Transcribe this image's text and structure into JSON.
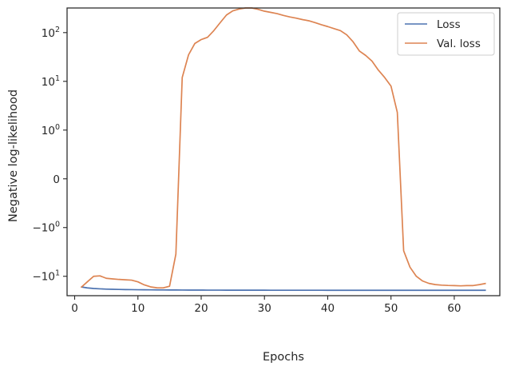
{
  "chart_data": {
    "type": "line",
    "xlabel": "Epochs",
    "ylabel": "Negative log-likelihood",
    "xlim": [
      -1.2,
      67.2
    ],
    "ylim": [
      -25,
      320
    ],
    "yscale": "symlog",
    "linthresh": 1,
    "xticks": [
      0,
      10,
      20,
      30,
      40,
      50,
      60
    ],
    "yticks": [
      {
        "value": 100,
        "label": "10",
        "exp": "2"
      },
      {
        "value": 10,
        "label": "10",
        "exp": "1"
      },
      {
        "value": 1,
        "label": "10",
        "exp": "0"
      },
      {
        "value": 0,
        "label": "0",
        "exp": ""
      },
      {
        "value": -1,
        "label": "−10",
        "exp": "0"
      },
      {
        "value": -10,
        "label": "−10",
        "exp": "1"
      }
    ],
    "grid": false,
    "legend_position": "top-right",
    "series": [
      {
        "name": "Loss",
        "color": "#4c72b0",
        "x": [
          1,
          2,
          3,
          4,
          5,
          6,
          7,
          8,
          9,
          10,
          11,
          12,
          13,
          14,
          15,
          16,
          17,
          18,
          19,
          20,
          21,
          22,
          23,
          24,
          25,
          26,
          27,
          28,
          29,
          30,
          31,
          32,
          33,
          34,
          35,
          36,
          37,
          38,
          39,
          40,
          41,
          42,
          43,
          44,
          45,
          46,
          47,
          48,
          49,
          50,
          51,
          52,
          53,
          54,
          55,
          56,
          57,
          58,
          59,
          60,
          61,
          62,
          63,
          64,
          65
        ],
        "y": [
          -16.5,
          -17.3,
          -17.8,
          -18.1,
          -18.35,
          -18.5,
          -18.62,
          -18.72,
          -18.8,
          -18.87,
          -18.93,
          -18.98,
          -19.02,
          -19.06,
          -19.09,
          -19.12,
          -19.15,
          -19.17,
          -19.19,
          -19.21,
          -19.22,
          -19.24,
          -19.25,
          -19.26,
          -19.27,
          -19.28,
          -19.29,
          -19.3,
          -19.31,
          -19.31,
          -19.32,
          -19.32,
          -19.33,
          -19.33,
          -19.34,
          -19.34,
          -19.35,
          -19.35,
          -19.35,
          -19.36,
          -19.36,
          -19.36,
          -19.36,
          -19.37,
          -19.37,
          -19.37,
          -19.37,
          -19.37,
          -19.38,
          -19.38,
          -19.38,
          -19.38,
          -19.38,
          -19.38,
          -19.38,
          -19.38,
          -19.39,
          -19.39,
          -19.39,
          -19.39,
          -19.39,
          -19.39,
          -19.39,
          -19.39,
          -19.4
        ]
      },
      {
        "name": "Val. loss",
        "color": "#dd8452",
        "x": [
          1,
          2,
          3,
          4,
          5,
          6,
          7,
          8,
          9,
          10,
          11,
          12,
          13,
          14,
          15,
          16,
          17,
          18,
          19,
          20,
          21,
          22,
          23,
          24,
          25,
          26,
          27,
          28,
          29,
          30,
          31,
          32,
          33,
          34,
          35,
          36,
          37,
          38,
          39,
          40,
          41,
          42,
          43,
          44,
          45,
          46,
          47,
          48,
          49,
          50,
          51,
          52,
          53,
          54,
          55,
          56,
          57,
          58,
          59,
          60,
          61,
          62,
          63,
          64,
          65
        ],
        "y": [
          -17.0,
          -13.0,
          -10.0,
          -9.8,
          -11.0,
          -11.3,
          -11.6,
          -11.8,
          -12.0,
          -13.0,
          -15.0,
          -16.5,
          -17.2,
          -17.3,
          -16.0,
          -3.5,
          12.0,
          35.0,
          60.0,
          72.0,
          80.0,
          110.0,
          160.0,
          230.0,
          280.0,
          305.0,
          320.0,
          320.0,
          300.0,
          275.0,
          260.0,
          245.0,
          225.0,
          210.0,
          198.0,
          185.0,
          175.0,
          160.0,
          145.0,
          133.0,
          121.0,
          110.0,
          90.0,
          65.0,
          42.0,
          34.0,
          26.0,
          17.0,
          12.0,
          8.0,
          2.3,
          -3.0,
          -6.5,
          -10.0,
          -12.5,
          -14.0,
          -14.8,
          -15.2,
          -15.4,
          -15.5,
          -15.7,
          -15.5,
          -15.5,
          -14.8,
          -14.0
        ]
      }
    ]
  }
}
